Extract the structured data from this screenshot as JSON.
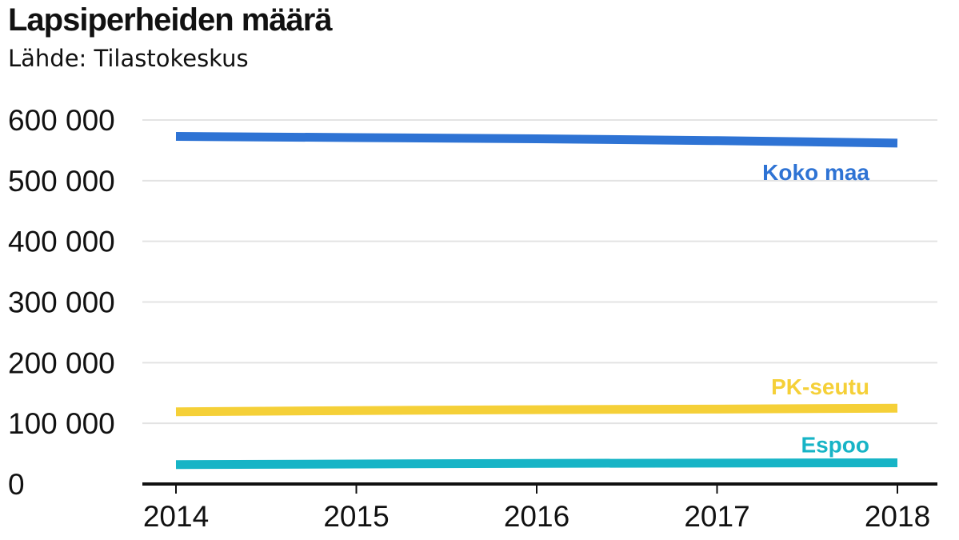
{
  "chart_data": {
    "type": "line",
    "title": "Lapsiperheiden määrä",
    "subtitle": "Lähde: Tilastokeskus",
    "xlabel": "",
    "ylabel": "",
    "x": [
      "2014",
      "2015",
      "2016",
      "2017",
      "2018"
    ],
    "ylim": [
      0,
      600000
    ],
    "yticks": [
      0,
      100000,
      200000,
      300000,
      400000,
      500000,
      600000
    ],
    "ytick_labels": [
      "0",
      "100 000",
      "200 000",
      "300 000",
      "400 000",
      "500 000",
      "600 000"
    ],
    "grid": "horizontal",
    "series": [
      {
        "name": "Koko maa",
        "color": "#2e73d4",
        "values": [
          573000,
          571000,
          569000,
          566000,
          562000
        ]
      },
      {
        "name": "PK-seutu",
        "color": "#f5d038",
        "values": [
          119000,
          121000,
          122500,
          123500,
          125000
        ]
      },
      {
        "name": "Espoo",
        "color": "#17b4c6",
        "values": [
          32000,
          33000,
          34000,
          34500,
          35000
        ]
      }
    ]
  }
}
